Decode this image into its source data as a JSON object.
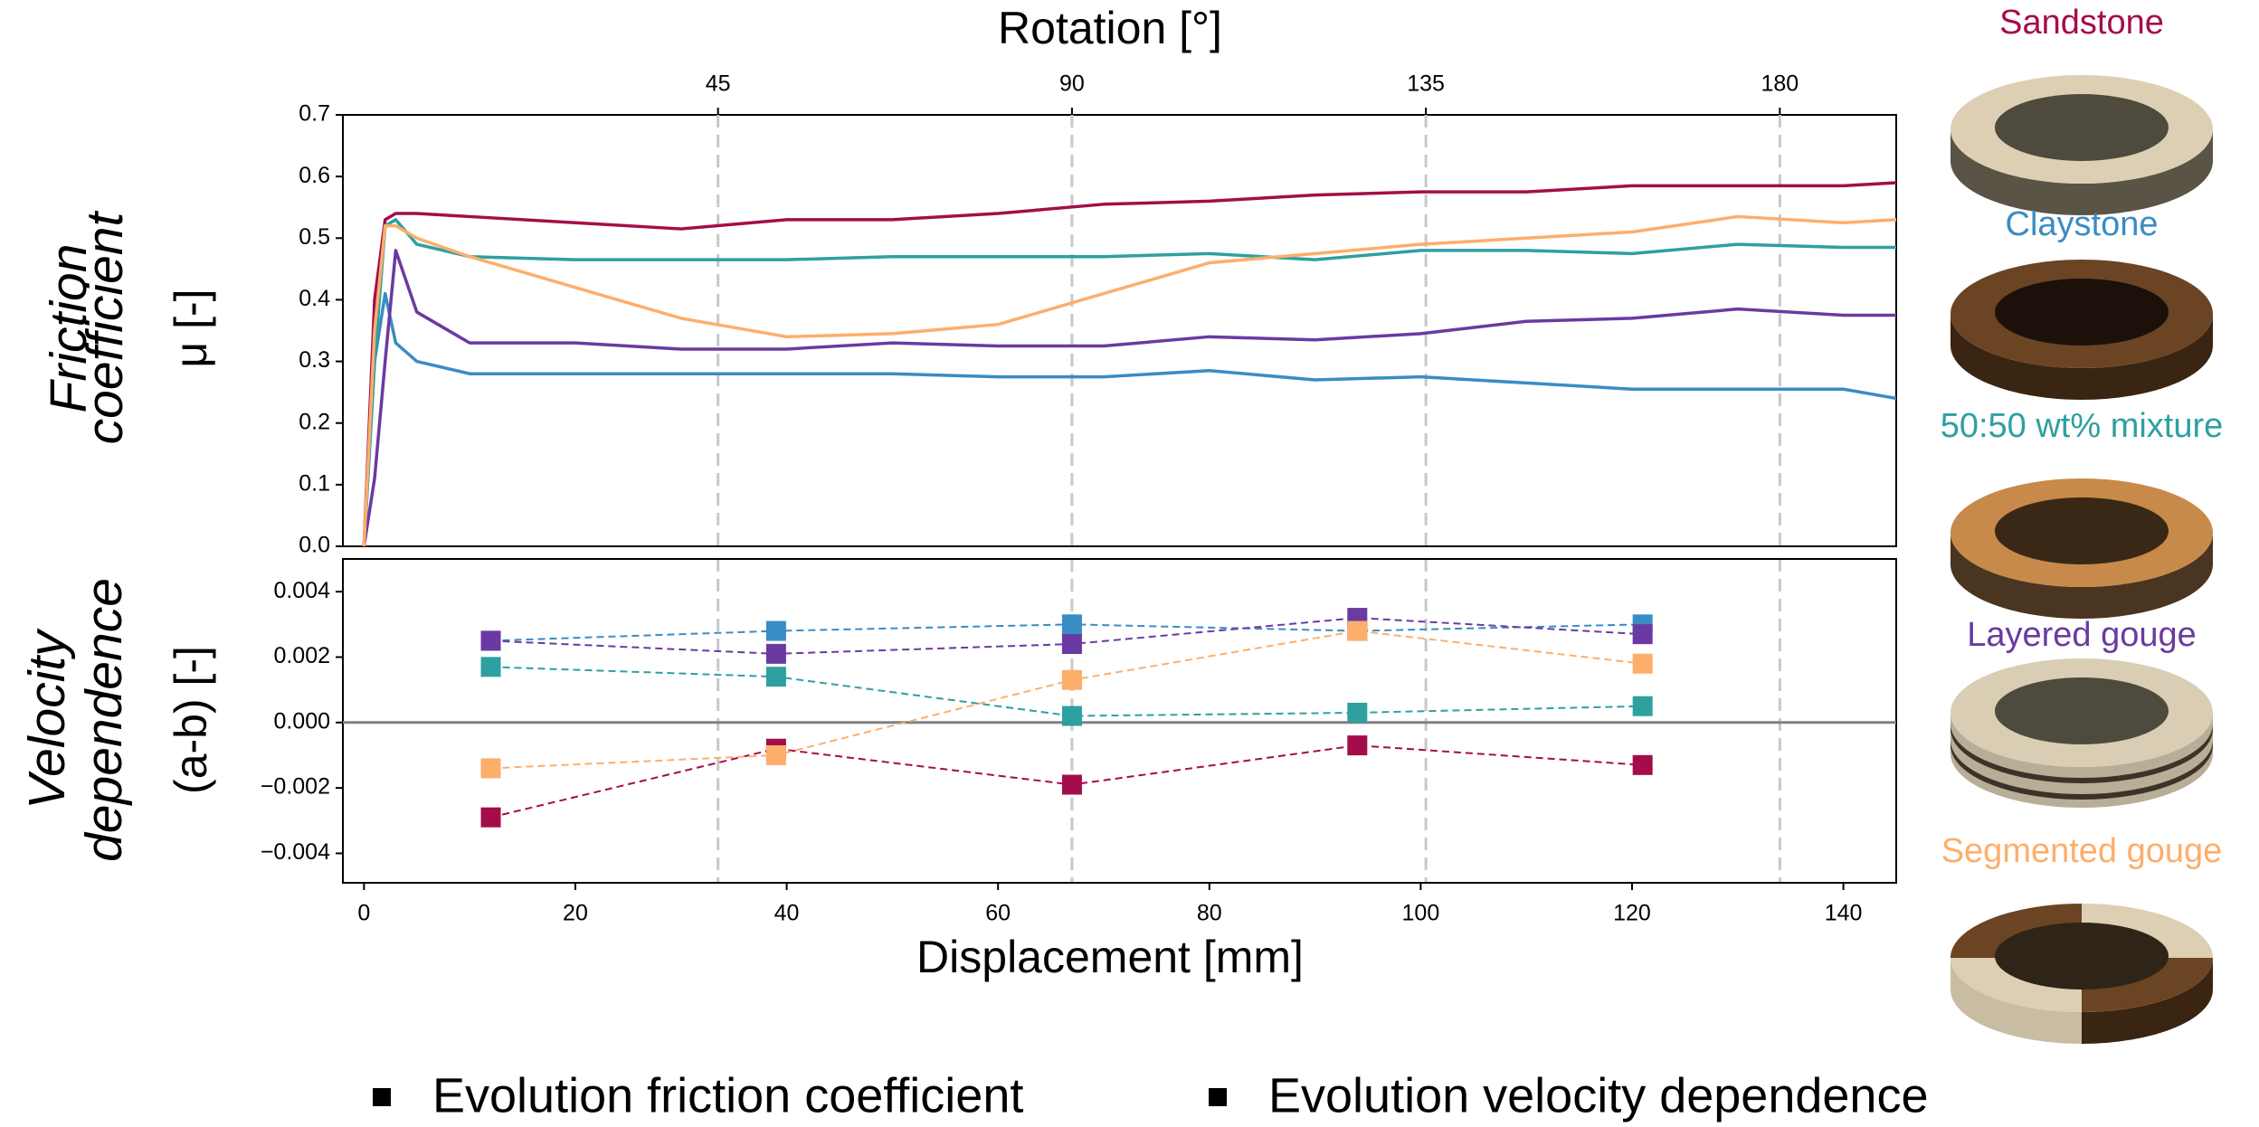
{
  "chart_data": [
    {
      "type": "line",
      "x2label": "Rotation [°]",
      "ylabel_title": [
        "Friction",
        "coefficient"
      ],
      "ylabel": "μ [-]",
      "xlim": [
        -2,
        145
      ],
      "x2lim": [
        -2.7,
        194.8
      ],
      "x2ticks": [
        45,
        90,
        135,
        180
      ],
      "ylim": [
        0,
        0.7
      ],
      "yticks": [
        {
          "value": 0,
          "label": "0.0"
        },
        0.1,
        0.2,
        0.3,
        0.4,
        0.5,
        0.6,
        0.7
      ],
      "x": [
        0,
        1,
        2,
        3,
        5,
        10,
        20,
        30,
        40,
        50,
        60,
        70,
        80,
        90,
        100,
        110,
        120,
        130,
        140,
        145
      ],
      "series": [
        {
          "name": "Sandstone",
          "color": "#a50d4a",
          "values": [
            0,
            0.4,
            0.53,
            0.54,
            0.54,
            0.535,
            0.525,
            0.515,
            0.53,
            0.53,
            0.54,
            0.555,
            0.56,
            0.57,
            0.575,
            0.575,
            0.585,
            0.585,
            0.585,
            0.59
          ]
        },
        {
          "name": "Claystone",
          "color": "#3a8cc4",
          "values": [
            0,
            0.3,
            0.41,
            0.33,
            0.3,
            0.28,
            0.28,
            0.28,
            0.28,
            0.28,
            0.275,
            0.275,
            0.285,
            0.27,
            0.275,
            0.265,
            0.255,
            0.255,
            0.255,
            0.24
          ]
        },
        {
          "name": "50:50 wt% mixture",
          "color": "#2ea0a0",
          "values": [
            0,
            0.3,
            0.52,
            0.53,
            0.49,
            0.47,
            0.465,
            0.465,
            0.465,
            0.47,
            0.47,
            0.47,
            0.475,
            0.465,
            0.48,
            0.48,
            0.475,
            0.49,
            0.485,
            0.485
          ]
        },
        {
          "name": "Layered gouge",
          "color": "#6a3aa2",
          "values": [
            0,
            0.11,
            0.3,
            0.48,
            0.38,
            0.33,
            0.33,
            0.32,
            0.32,
            0.33,
            0.325,
            0.325,
            0.34,
            0.335,
            0.345,
            0.365,
            0.37,
            0.385,
            0.375,
            0.375
          ]
        },
        {
          "name": "Segmented gouge",
          "color": "#fdae6b",
          "values": [
            0,
            0.35,
            0.52,
            0.52,
            0.5,
            0.47,
            0.42,
            0.37,
            0.34,
            0.345,
            0.36,
            0.41,
            0.46,
            0.475,
            0.49,
            0.5,
            0.51,
            0.535,
            0.525,
            0.53
          ]
        }
      ]
    },
    {
      "type": "line",
      "markers": true,
      "zero_line": true,
      "xlabel": "Displacement [mm]",
      "ylabel_title": [
        "Velocity",
        "dependence"
      ],
      "ylabel": "(a-b) [-]",
      "xlim": [
        -2,
        145
      ],
      "xticks": [
        0,
        20,
        40,
        60,
        80,
        100,
        120,
        140
      ],
      "ylim": [
        -0.0049,
        0.005
      ],
      "yticks": [
        {
          "value": -0.004,
          "label": "−0.004"
        },
        {
          "value": -0.002,
          "label": "−0.002"
        },
        {
          "value": 0,
          "label": "0.000"
        },
        0.002,
        0.004
      ],
      "x": [
        12,
        39,
        67,
        94,
        121
      ],
      "series": [
        {
          "color": "#a50d4a",
          "values": [
            -0.0029,
            -0.0008,
            -0.0019,
            -0.0007,
            -0.0013
          ]
        },
        {
          "color": "#3a8cc4",
          "values": [
            0.0025,
            0.0028,
            0.003,
            0.0028,
            0.003
          ]
        },
        {
          "color": "#2ea0a0",
          "values": [
            0.0017,
            0.0014,
            0.0002,
            0.0003,
            0.0005
          ]
        },
        {
          "color": "#6a3aa2",
          "values": [
            0.0025,
            0.0021,
            0.0024,
            0.0032,
            0.0027
          ]
        },
        {
          "color": "#fdae6b",
          "values": [
            -0.0014,
            -0.001,
            0.0013,
            0.0028,
            0.0018
          ]
        }
      ]
    }
  ],
  "legend_notes": [
    "Evolution friction coefficient",
    "Evolution velocity dependence"
  ]
}
